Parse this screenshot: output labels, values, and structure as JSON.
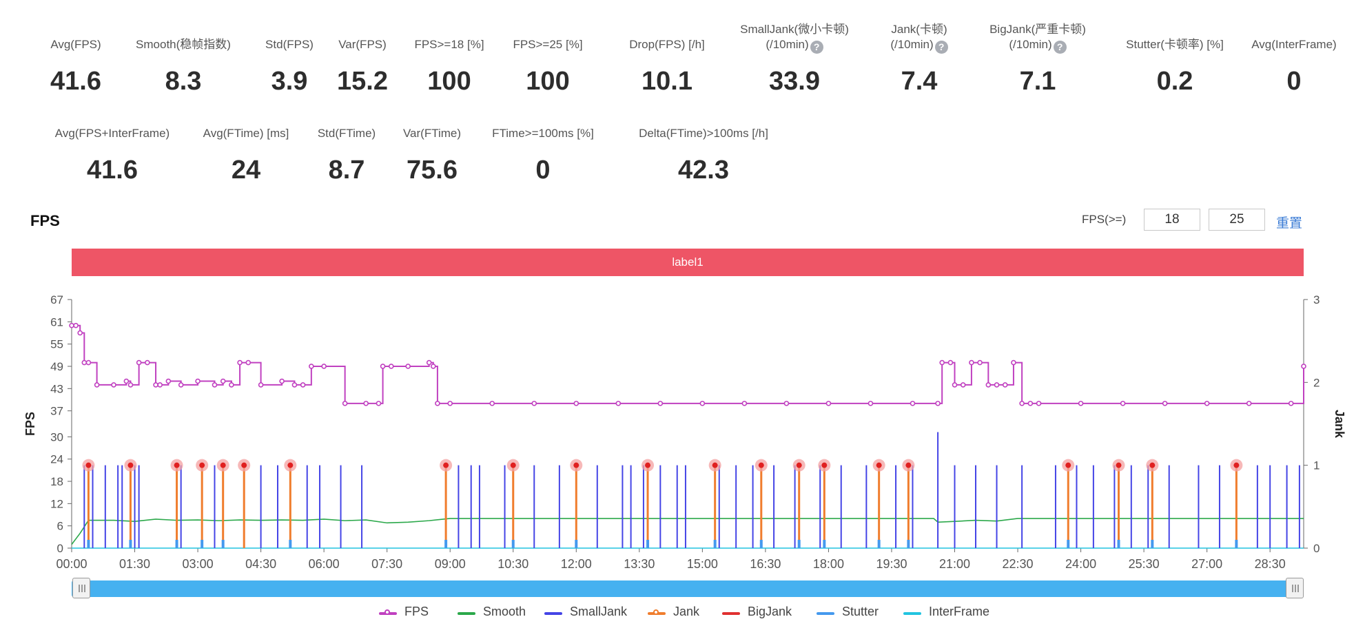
{
  "stats_row1": [
    {
      "label": "Avg(FPS)",
      "value": "41.6",
      "help": false
    },
    {
      "label": "Smooth(稳帧指数)",
      "value": "8.3",
      "help": true
    },
    {
      "label": "Std(FPS)",
      "value": "3.9",
      "help": false
    },
    {
      "label": "Var(FPS)",
      "value": "15.2",
      "help": false
    },
    {
      "label": "FPS>=18 [%]",
      "value": "100",
      "help": false
    },
    {
      "label": "FPS>=25 [%]",
      "value": "100",
      "help": false
    },
    {
      "label": "Drop(FPS) [/h]",
      "value": "10.1",
      "help": true
    },
    {
      "label": "SmallJank(微小卡顿)",
      "label2": "(/10min)",
      "value": "33.9",
      "help": true
    },
    {
      "label": "Jank(卡顿)",
      "label2": "(/10min)",
      "value": "7.4",
      "help": true
    },
    {
      "label": "BigJank(严重卡顿)",
      "label2": "(/10min)",
      "value": "7.1",
      "help": true
    },
    {
      "label": "Stutter(卡顿率) [%]",
      "value": "0.2",
      "help": false
    },
    {
      "label": "Avg(InterFrame)",
      "value": "0",
      "help": false
    }
  ],
  "stats_row2": [
    {
      "label": "Avg(FPS+InterFrame)",
      "value": "41.6",
      "help": false
    },
    {
      "label": "Avg(FTime) [ms]",
      "value": "24",
      "help": false
    },
    {
      "label": "Std(FTime)",
      "value": "8.7",
      "help": false
    },
    {
      "label": "Var(FTime)",
      "value": "75.6",
      "help": false
    },
    {
      "label": "FTime>=100ms [%]",
      "value": "0",
      "help": false
    },
    {
      "label": "Delta(FTime)>100ms [/h]",
      "value": "42.3",
      "help": true
    }
  ],
  "help_glyph": "?",
  "chart_section_title": "FPS",
  "fps_filter": {
    "label": "FPS(>=)",
    "value1": "18",
    "value2": "25",
    "reset_label": "重置"
  },
  "banner_label": "label1",
  "legend": [
    {
      "name": "FPS",
      "color": "#c040c0",
      "marker": true
    },
    {
      "name": "Smooth",
      "color": "#2ba84a",
      "marker": false
    },
    {
      "name": "SmallJank",
      "color": "#4444e6",
      "marker": false
    },
    {
      "name": "Jank",
      "color": "#f07d2d",
      "marker": true
    },
    {
      "name": "BigJank",
      "color": "#e03030",
      "marker": false
    },
    {
      "name": "Stutter",
      "color": "#4499ee",
      "marker": false
    },
    {
      "name": "InterFrame",
      "color": "#22c4e0",
      "marker": false
    }
  ],
  "chart_data": {
    "type": "line",
    "title": "",
    "xlabel": "",
    "ylabel": "FPS",
    "y2label": "Jank",
    "x_unit": "minutes",
    "xlim": [
      0,
      29.3
    ],
    "ylim": [
      0,
      67
    ],
    "y2lim": [
      0,
      3
    ],
    "y_ticks": [
      0,
      6,
      12,
      18,
      24,
      30,
      37,
      43,
      49,
      55,
      61,
      67
    ],
    "y2_ticks": [
      0,
      1,
      2,
      3
    ],
    "x_tick_labels": [
      "00:00",
      "01:30",
      "03:00",
      "04:30",
      "06:00",
      "07:30",
      "09:00",
      "10:30",
      "12:00",
      "13:30",
      "15:00",
      "16:30",
      "18:00",
      "19:30",
      "21:00",
      "22:30",
      "24:00",
      "25:30",
      "27:00",
      "28:30"
    ],
    "grid": false,
    "legend_position": "bottom",
    "series": [
      {
        "name": "FPS",
        "axis": "left",
        "x": [
          0,
          0.1,
          0.2,
          0.3,
          0.4,
          0.6,
          1.0,
          1.3,
          1.4,
          1.6,
          1.8,
          2.0,
          2.1,
          2.3,
          2.6,
          3.0,
          3.4,
          3.6,
          3.8,
          4.0,
          4.2,
          4.5,
          5.0,
          5.3,
          5.5,
          5.7,
          6.0,
          6.5,
          7.0,
          7.3,
          7.4,
          7.6,
          8.0,
          8.5,
          8.6,
          8.7,
          9.0,
          10.0,
          11.0,
          12.0,
          13.0,
          14.0,
          15.0,
          16.0,
          17.0,
          18.0,
          19.0,
          20.0,
          20.6,
          20.7,
          20.9,
          21.0,
          21.2,
          21.4,
          21.6,
          21.8,
          22.0,
          22.2,
          22.4,
          22.6,
          22.8,
          23.0,
          24.0,
          25.0,
          26.0,
          27.0,
          28.0,
          29.0,
          29.3
        ],
        "values": [
          60,
          60,
          58,
          50,
          50,
          44,
          44,
          45,
          44,
          50,
          50,
          44,
          44,
          45,
          44,
          45,
          44,
          45,
          44,
          50,
          50,
          44,
          45,
          44,
          44,
          49,
          49,
          39,
          39,
          39,
          49,
          49,
          49,
          50,
          49,
          39,
          39,
          39,
          39,
          39,
          39,
          39,
          39,
          39,
          39,
          39,
          39,
          39,
          39,
          50,
          50,
          44,
          44,
          50,
          50,
          44,
          44,
          44,
          50,
          39,
          39,
          39,
          39,
          39,
          39,
          39,
          39,
          39,
          49
        ]
      },
      {
        "name": "Smooth",
        "axis": "left",
        "x": [
          0,
          0.2,
          0.4,
          1,
          1.5,
          2,
          2.5,
          3,
          3.5,
          4,
          4.5,
          5,
          5.5,
          6,
          6.5,
          7,
          7.5,
          8,
          8.5,
          9,
          12,
          15,
          18,
          20.5,
          20.6,
          21,
          21.5,
          22,
          22.5,
          23,
          26,
          29.3
        ],
        "values": [
          1,
          4,
          7.5,
          7.5,
          7.2,
          7.8,
          7.5,
          7.6,
          7.4,
          7.6,
          7.5,
          7.6,
          7.5,
          7.8,
          7.4,
          7.6,
          6.8,
          7.0,
          7.4,
          8,
          8,
          8,
          8,
          8,
          7,
          7.2,
          7.5,
          7.3,
          8,
          8,
          8,
          8
        ]
      },
      {
        "name": "SmallJank",
        "axis": "right",
        "spike_x": [
          0.3,
          0.5,
          0.8,
          1.1,
          1.2,
          1.5,
          1.6,
          2.6,
          3.1,
          3.4,
          4.1,
          4.5,
          4.9,
          5.2,
          5.6,
          5.9,
          6.4,
          6.9,
          8.9,
          9.2,
          9.5,
          9.7,
          10.3,
          11.0,
          11.6,
          12.0,
          12.5,
          13.1,
          13.3,
          13.6,
          14.0,
          14.4,
          14.6,
          15.4,
          15.8,
          16.2,
          16.7,
          17.2,
          17.8,
          18.3,
          18.9,
          19.6,
          20.0,
          20.6,
          21.0,
          21.5,
          22.0,
          22.6,
          23.4,
          23.9,
          24.3,
          24.8,
          25.2,
          25.6,
          26.1,
          26.8,
          27.3,
          28.2,
          28.5,
          28.9,
          29.2
        ],
        "spike_values": [
          1,
          1,
          1,
          1,
          1,
          1,
          1,
          1,
          1,
          1,
          1,
          1,
          1,
          1,
          1,
          1,
          1,
          1,
          1,
          1,
          1,
          1,
          1,
          1,
          1,
          1,
          1,
          1,
          1,
          1,
          1,
          1,
          1,
          1,
          1,
          1,
          1,
          1,
          1,
          1,
          1,
          1,
          1,
          1.4,
          1,
          1,
          1,
          1,
          1,
          1,
          1,
          1,
          1,
          1,
          1,
          1,
          1,
          1,
          1,
          1,
          1
        ]
      },
      {
        "name": "Jank",
        "axis": "right",
        "spike_x": [
          0.4,
          1.4,
          2.5,
          3.1,
          3.6,
          4.1,
          5.2,
          8.9,
          10.5,
          12.0,
          13.7,
          15.3,
          16.4,
          17.3,
          17.9,
          19.2,
          19.9,
          23.7,
          24.9,
          25.7,
          27.7
        ],
        "spike_values": [
          1,
          1,
          1,
          1,
          1,
          1,
          1,
          1,
          1,
          1,
          1,
          1,
          1,
          1,
          1,
          1,
          1,
          1,
          1,
          1,
          1
        ]
      },
      {
        "name": "BigJank",
        "axis": "right",
        "spike_x": [],
        "spike_values": []
      },
      {
        "name": "Stutter",
        "axis": "right",
        "spike_x": [
          0.4,
          1.4,
          2.5,
          3.1,
          3.6,
          5.2,
          8.9,
          10.5,
          12.0,
          13.7,
          15.3,
          16.4,
          17.3,
          17.9,
          19.2,
          19.9,
          23.7,
          24.9,
          25.7,
          27.7
        ],
        "spike_values": [
          0.1,
          0.1,
          0.1,
          0.1,
          0.1,
          0.1,
          0.1,
          0.1,
          0.1,
          0.1,
          0.1,
          0.1,
          0.1,
          0.1,
          0.1,
          0.1,
          0.1,
          0.1,
          0.1,
          0.1
        ]
      },
      {
        "name": "InterFrame",
        "axis": "left",
        "x": [
          0,
          29.3
        ],
        "values": [
          0,
          0
        ]
      }
    ]
  }
}
